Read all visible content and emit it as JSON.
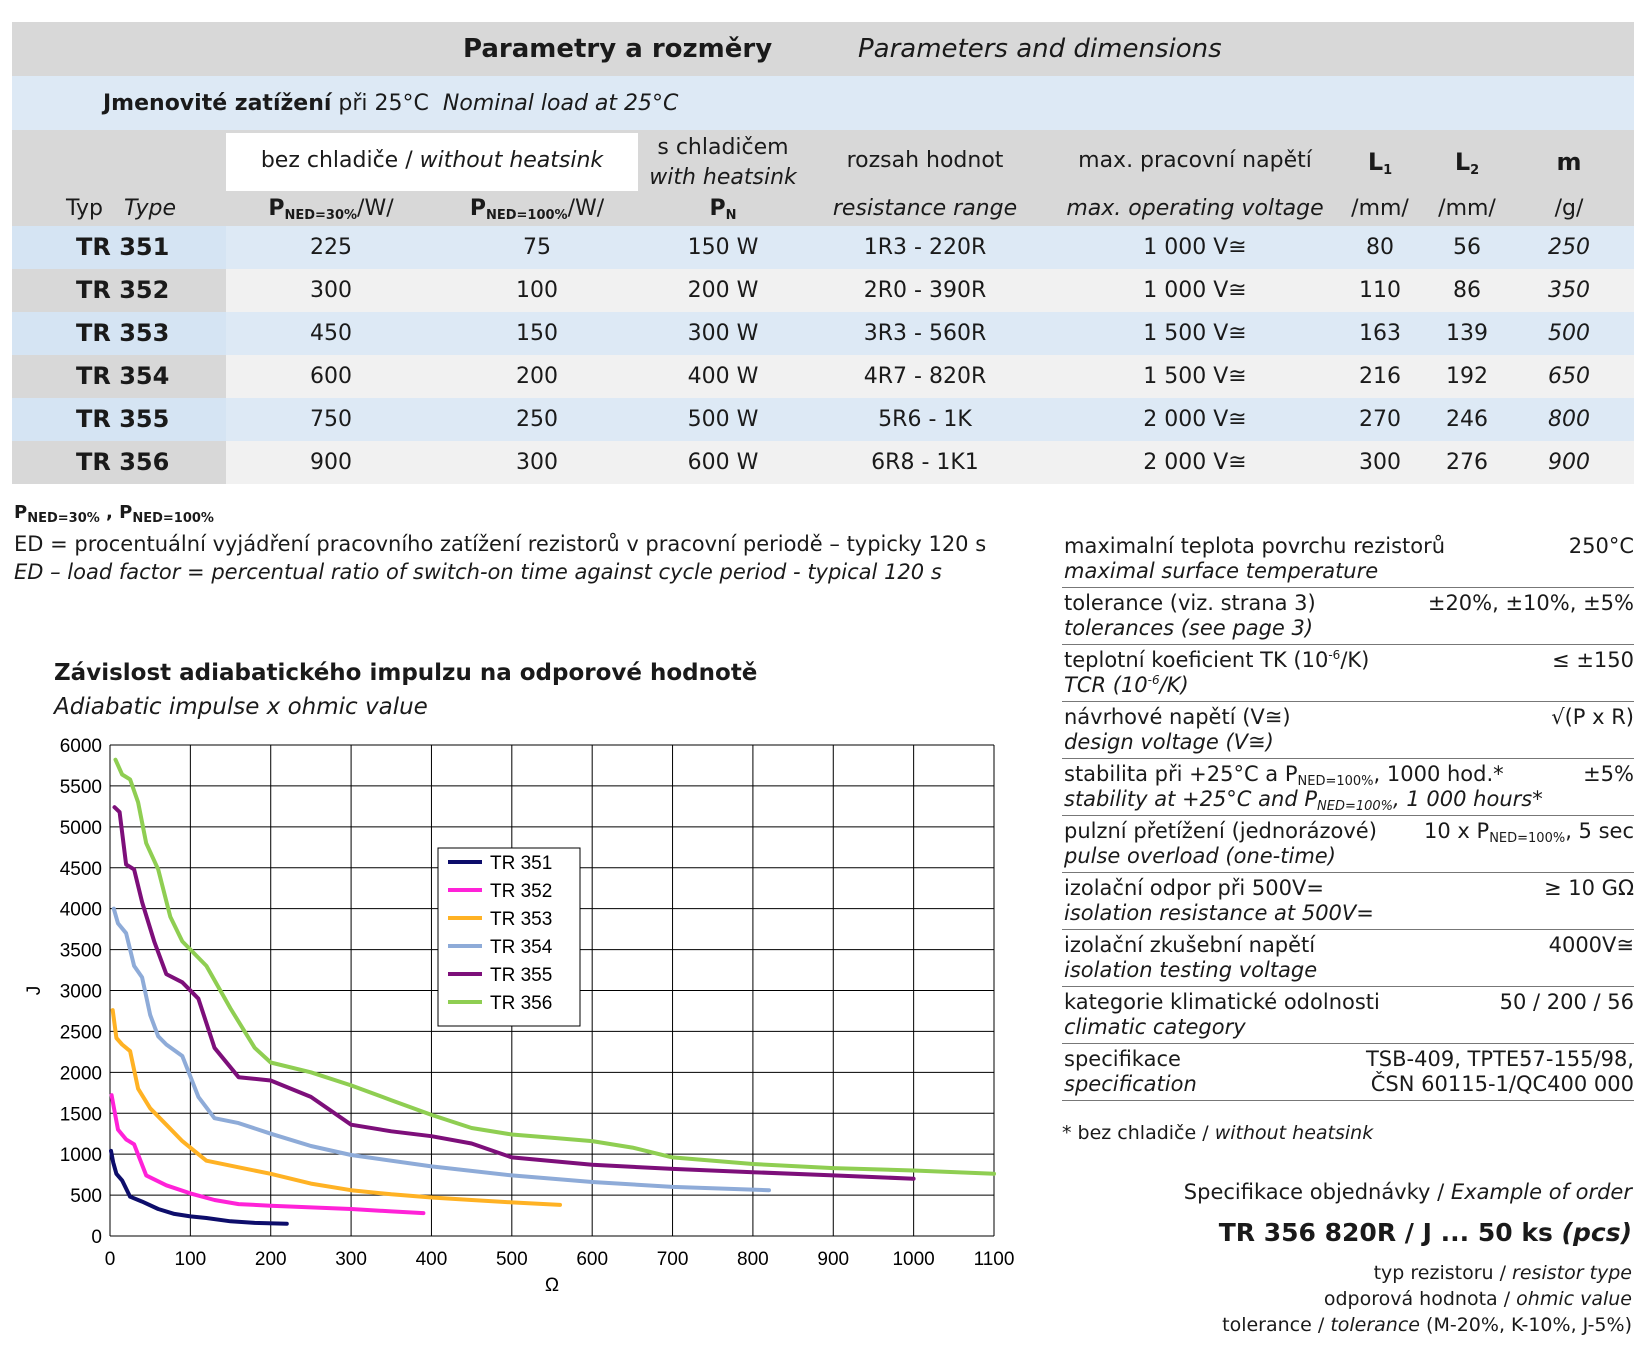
{
  "header": {
    "title_cz": "Parametry a rozměry",
    "title_en": "Parameters and dimensions",
    "load_cz": "Jmenovité zatížení",
    "load_mid": "při 25°C",
    "load_en": "Nominal load  at 25°C"
  },
  "columns": {
    "typ_cz": "Typ",
    "typ_en": "Type",
    "without_cz": "bez chladiče /",
    "without_en": "without heatsink",
    "p30_sub": "NED=30%",
    "p100_sub": "NED=100%",
    "unit_w": "/W/",
    "with_cz": "s chladičem",
    "with_en": "with heatsink",
    "pn_sub": "N",
    "range_cz": "rozsah hodnot",
    "range_en": "resistance range",
    "volt_cz": "max. pracovní napětí",
    "volt_en": "max. operating voltage",
    "l1_sub": "1",
    "l2_sub": "2",
    "m": "m",
    "unit_mm": "/mm/",
    "unit_g": "/g/"
  },
  "rows": [
    {
      "typ": "TR 351",
      "p30": "225",
      "p100": "75",
      "pn": "150 W",
      "range": "1R3 - 220R",
      "volt": "1 000 V≅",
      "l1": "80",
      "l2": "56",
      "m": "250"
    },
    {
      "typ": "TR 352",
      "p30": "300",
      "p100": "100",
      "pn": "200 W",
      "range": "2R0 - 390R",
      "volt": "1 000 V≅",
      "l1": "110",
      "l2": "86",
      "m": "350"
    },
    {
      "typ": "TR 353",
      "p30": "450",
      "p100": "150",
      "pn": "300 W",
      "range": "3R3 - 560R",
      "volt": "1 500 V≅",
      "l1": "163",
      "l2": "139",
      "m": "500"
    },
    {
      "typ": "TR 354",
      "p30": "600",
      "p100": "200",
      "pn": "400 W",
      "range": "4R7 - 820R",
      "volt": "1 500 V≅",
      "l1": "216",
      "l2": "192",
      "m": "650"
    },
    {
      "typ": "TR 355",
      "p30": "750",
      "p100": "250",
      "pn": "500 W",
      "range": "5R6 - 1K",
      "volt": "2 000 V≅",
      "l1": "270",
      "l2": "246",
      "m": "800"
    },
    {
      "typ": "TR 356",
      "p30": "900",
      "p100": "300",
      "pn": "600 W",
      "range": "6R8 - 1K1",
      "volt": "2 000 V≅",
      "l1": "300",
      "l2": "276",
      "m": "900"
    }
  ],
  "notes": {
    "p_sub_a": "NED=30%",
    "p_sub_b": "NED=100%",
    "ed_cz": "ED = procentuální vyjádření pracovního zatížení rezistorů  v pracovní  periodě – typicky 120 s",
    "ed_en": "ED – load factor = percentual ratio of switch-on time against cycle period - typical 120 s"
  },
  "chart_heading": {
    "title_cz": "Závislost adiabatického impulzu na odporové hodnotě",
    "title_en": "Adiabatic impulse x ohmic value"
  },
  "chart_data": {
    "type": "line",
    "xlabel": "Ω",
    "ylabel": "J",
    "xlim": [
      0,
      1100
    ],
    "ylim": [
      0,
      6000
    ],
    "x_ticks": [
      0,
      100,
      200,
      300,
      400,
      500,
      600,
      700,
      800,
      900,
      1000,
      1100
    ],
    "y_ticks": [
      0,
      500,
      1000,
      1500,
      2000,
      2500,
      3000,
      3500,
      4000,
      4500,
      5000,
      5500,
      6000
    ],
    "grid": true,
    "legend_position": "center",
    "series": [
      {
        "name": "TR 351",
        "color": "#0d0d6b",
        "x": [
          1.3,
          4,
          8,
          15,
          25,
          40,
          60,
          80,
          100,
          120,
          150,
          180,
          220
        ],
        "y": [
          1040,
          900,
          760,
          680,
          480,
          420,
          330,
          270,
          240,
          220,
          180,
          160,
          150
        ]
      },
      {
        "name": "TR 352",
        "color": "#ff22d8",
        "x": [
          2,
          5,
          10,
          20,
          30,
          45,
          70,
          100,
          130,
          160,
          200,
          250,
          300,
          350,
          390
        ],
        "y": [
          1720,
          1560,
          1300,
          1180,
          1120,
          740,
          620,
          520,
          440,
          390,
          370,
          350,
          330,
          300,
          280
        ]
      },
      {
        "name": "TR 353",
        "color": "#ffb224",
        "x": [
          3.3,
          8,
          15,
          25,
          35,
          50,
          70,
          90,
          120,
          160,
          200,
          250,
          300,
          350,
          400,
          450,
          500,
          560
        ],
        "y": [
          2760,
          2420,
          2340,
          2260,
          1800,
          1560,
          1360,
          1160,
          920,
          840,
          760,
          640,
          560,
          510,
          470,
          440,
          410,
          380
        ]
      },
      {
        "name": "TR 354",
        "color": "#8eabd8",
        "x": [
          4.7,
          10,
          20,
          30,
          40,
          50,
          60,
          70,
          90,
          110,
          130,
          160,
          200,
          250,
          300,
          400,
          500,
          600,
          700,
          820
        ],
        "y": [
          4000,
          3820,
          3700,
          3300,
          3160,
          2700,
          2440,
          2340,
          2200,
          1700,
          1440,
          1380,
          1250,
          1100,
          990,
          850,
          740,
          660,
          600,
          560
        ]
      },
      {
        "name": "TR 355",
        "color": "#7d0f7a",
        "x": [
          5.6,
          12,
          20,
          30,
          40,
          55,
          70,
          90,
          110,
          130,
          160,
          200,
          250,
          300,
          350,
          400,
          450,
          500,
          600,
          700,
          800,
          900,
          1000
        ],
        "y": [
          5240,
          5180,
          4540,
          4480,
          4080,
          3600,
          3200,
          3100,
          2900,
          2300,
          1940,
          1900,
          1700,
          1360,
          1280,
          1220,
          1130,
          960,
          870,
          820,
          780,
          740,
          700
        ]
      },
      {
        "name": "TR 356",
        "color": "#8fce52",
        "x": [
          6.8,
          15,
          25,
          35,
          45,
          60,
          75,
          90,
          120,
          150,
          180,
          200,
          250,
          300,
          350,
          400,
          450,
          500,
          550,
          600,
          650,
          700,
          800,
          900,
          1000,
          1100
        ],
        "y": [
          5820,
          5640,
          5580,
          5300,
          4800,
          4480,
          3900,
          3600,
          3300,
          2780,
          2300,
          2120,
          2000,
          1840,
          1660,
          1480,
          1320,
          1240,
          1200,
          1160,
          1080,
          960,
          880,
          830,
          800,
          760
        ]
      }
    ]
  },
  "spec": [
    {
      "cz": "maximalní teplota povrchu rezistorů",
      "en": "maximal surface temperature",
      "val": "250°C"
    },
    {
      "cz": "tolerance (viz. strana 3)",
      "en": "tolerances (see page 3)",
      "val": "±20%, ±10%, ±5%"
    },
    {
      "cz_pre": "teplotní koeficient TK (10",
      "cz_sup": "-6",
      "cz_post": "/K)",
      "en_pre": "TCR (10",
      "en_sup": "-6",
      "en_post": "/K)",
      "val": "≤ ±150"
    },
    {
      "cz": "návrhové napětí (V≅)",
      "en": "design voltage (V≅)",
      "val": "√(P x R)"
    },
    {
      "cz_pre": "stabilita při +25°C a P",
      "cz_sub": "NED=100%",
      "cz_post": ", 1000 hod.*",
      "en_pre": "stability at +25°C and P",
      "en_sub": "NED=100%",
      "en_post": ", 1 000 hours*",
      "val": "±5%"
    },
    {
      "cz": "pulzní přetížení (jednorázové)",
      "en": "pulse overload (one-time)",
      "val_pre": "10 x P",
      "val_sub": "NED=100%",
      "val_post": ", 5 sec"
    },
    {
      "cz": "izolační odpor při 500V=",
      "en": "isolation resistance at 500V=",
      "val": "≥ 10 GΩ"
    },
    {
      "cz": "izolační zkušební napětí",
      "en": "isolation testing voltage",
      "val": "4000V≅"
    },
    {
      "cz": "kategorie klimatické odolnosti",
      "en": "climatic category",
      "val": "50 / 200 / 56"
    },
    {
      "cz": "specifikace",
      "en": "specification",
      "val": "TSB-409, TPTE57-155/98,",
      "val2": "ČSN 60115-1/QC400 000"
    }
  ],
  "spec_note": {
    "cz": "* bez chladiče /",
    "en": "without heatsink"
  },
  "order": {
    "label_cz": "Specifikace objednávky /",
    "label_en": "Example of order",
    "code": "TR 356  820R / J ... 50 ks",
    "code_en": "(pcs)",
    "line1_cz": "typ rezistoru /",
    "line1_en": "resistor type",
    "line2_cz": "odporová hodnota /",
    "line2_en": "ohmic value",
    "line3_cz": "tolerance /",
    "line3_en": "tolerance",
    "line3_post": "(M-20%, K-10%, J-5%)"
  }
}
